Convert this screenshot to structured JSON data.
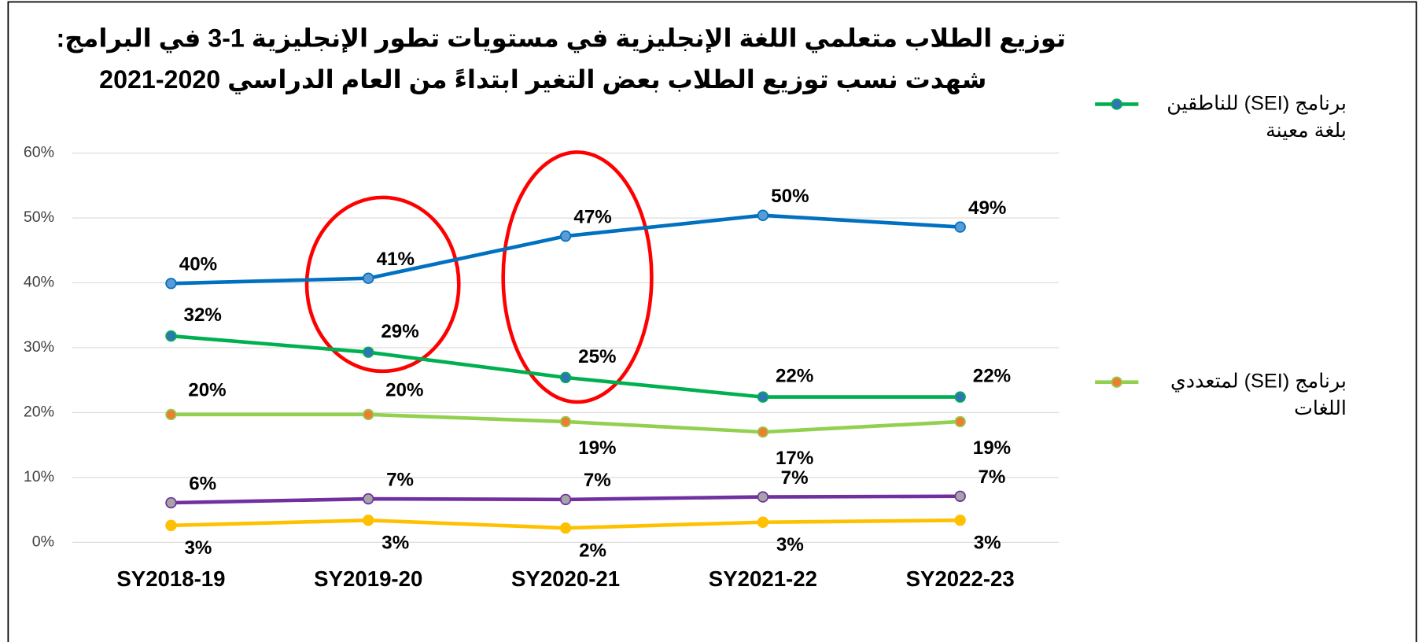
{
  "chart_data": {
    "type": "line",
    "title_lines": [
      "توزيع الطلاب متعلمي اللغة الإنجليزية في مستويات تطور الإنجليزية 1-3 في البرامج:",
      "شهدت نسب توزيع الطلاب بعض التغير ابتداءً من العام الدراسي 2020-2021"
    ],
    "categories": [
      "SY2018-19",
      "SY2019-20",
      "SY2020-21",
      "SY2021-22",
      "SY2022-23"
    ],
    "ylim": [
      0,
      60
    ],
    "yticks": [
      {
        "value": 0,
        "label": "0%"
      },
      {
        "value": 10,
        "label": "10%"
      },
      {
        "value": 20,
        "label": "20%"
      },
      {
        "value": 30,
        "label": "30%"
      },
      {
        "value": 40,
        "label": "40%"
      },
      {
        "value": 50,
        "label": "50%"
      },
      {
        "value": 60,
        "label": "60%"
      }
    ],
    "grid": true,
    "legend": "right",
    "series": [
      {
        "color": "#0070c0",
        "marker_color": "#5b9bd5",
        "values": [
          39.9,
          40.7,
          47.2,
          50.4,
          48.6
        ],
        "value_labels": [
          "40%",
          "41%",
          "47%",
          "50%",
          "49%"
        ]
      },
      {
        "name": "برنامج (SEI) للناطقين بلغة معينة",
        "color": "#00b050",
        "marker_color": "#2e75b6",
        "values": [
          31.8,
          29.3,
          25.4,
          22.4,
          22.4
        ],
        "value_labels": [
          "32%",
          "29%",
          "25%",
          "22%",
          "22%"
        ]
      },
      {
        "name": "برنامج (SEI) لمتعددي اللغات",
        "color": "#92d050",
        "marker_color": "#ed7d31",
        "values": [
          19.7,
          19.7,
          18.6,
          17.0,
          18.6
        ],
        "value_labels": [
          "20%",
          "20%",
          "19%",
          "17%",
          "19%"
        ]
      },
      {
        "color": "#7030a0",
        "marker_color": "#a5a5a5",
        "values": [
          6.1,
          6.7,
          6.6,
          7.0,
          7.1
        ],
        "value_labels": [
          "6%",
          "7%",
          "7%",
          "7%",
          "7%"
        ]
      },
      {
        "color": "#ffc000",
        "marker_color": "#ffc000",
        "values": [
          2.6,
          3.4,
          2.2,
          3.1,
          3.4
        ],
        "value_labels": [
          "3%",
          "3%",
          "2%",
          "3%",
          "3%"
        ]
      }
    ]
  }
}
